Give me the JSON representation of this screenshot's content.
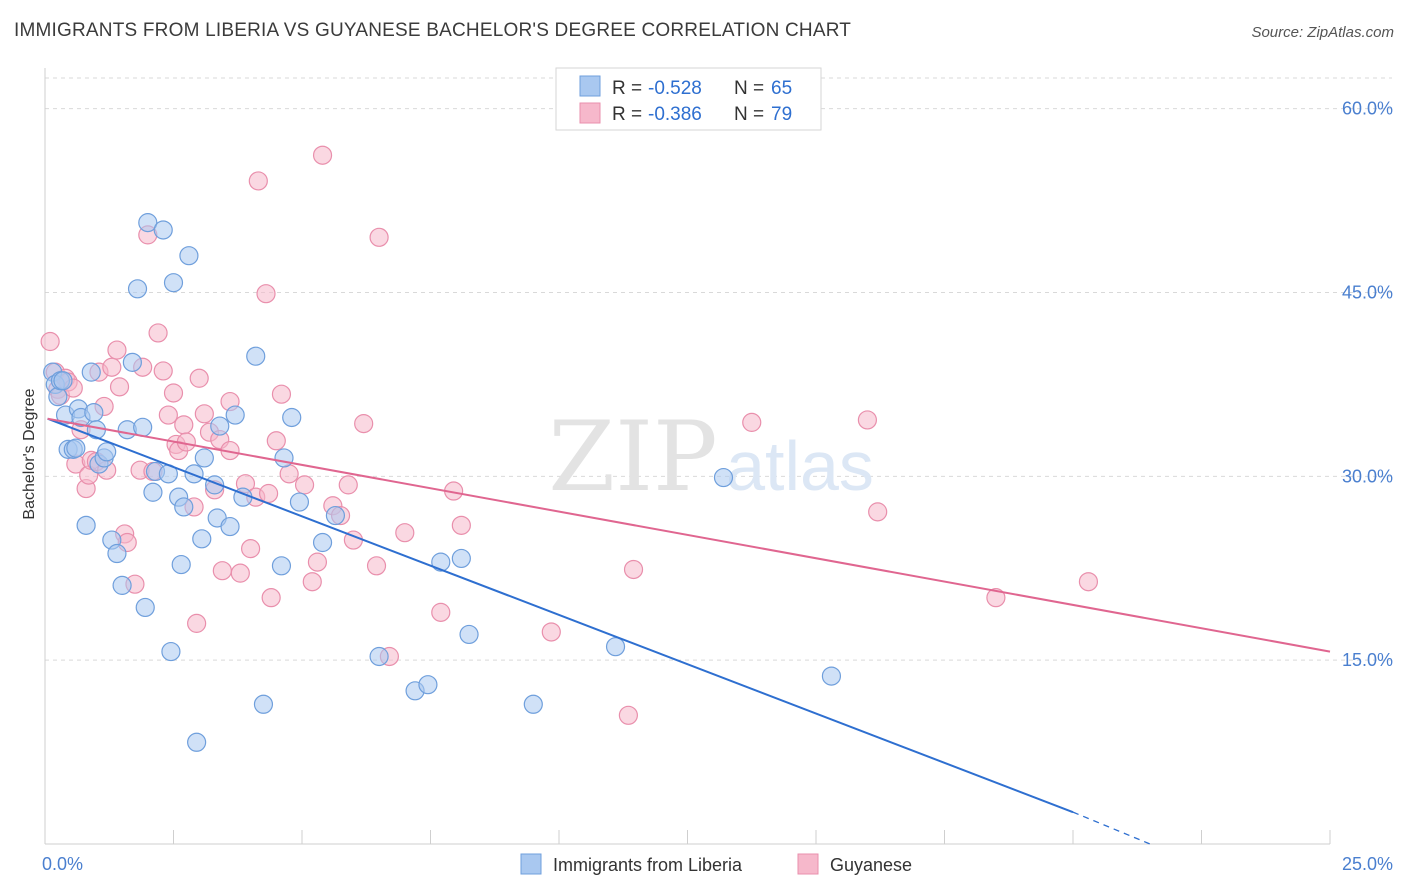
{
  "header": {
    "title": "IMMIGRANTS FROM LIBERIA VS GUYANESE BACHELOR'S DEGREE CORRELATION CHART",
    "source": "Source: ZipAtlas.com"
  },
  "watermark": {
    "zip": "ZIP",
    "atlas": "atlas"
  },
  "stats": [
    {
      "r_label": "R = ",
      "r_value": "-0.528",
      "n_label": "N = ",
      "n_value": "65"
    },
    {
      "r_label": "R = ",
      "r_value": "-0.386",
      "n_label": "N = ",
      "n_value": "79"
    }
  ],
  "colors": {
    "liberia_fill": "#a9c8f0",
    "liberia_stroke": "#6f9fdc",
    "liberia_line": "#2e6fd0",
    "guyanese_fill": "#f6b8cb",
    "guyanese_stroke": "#e98fac",
    "guyanese_line": "#e06690",
    "tick_text": "#4a7fcf",
    "grid": "#d9d9d9"
  },
  "chart_data": {
    "type": "scatter",
    "title": "IMMIGRANTS FROM LIBERIA VS GUYANESE BACHELOR'S DEGREE CORRELATION CHART",
    "xlabel": "",
    "ylabel": "Bachelor's Degree",
    "xlim": [
      0,
      25
    ],
    "ylim": [
      0,
      62.5
    ],
    "x_tick_labels": [
      {
        "value": 0,
        "label": "0.0%"
      },
      {
        "value": 25,
        "label": "25.0%"
      }
    ],
    "y_tick_labels": [
      {
        "value": 15,
        "label": "15.0%"
      },
      {
        "value": 30,
        "label": "30.0%"
      },
      {
        "value": 45,
        "label": "45.0%"
      },
      {
        "value": 60,
        "label": "60.0%"
      }
    ],
    "x_ticks": [
      0,
      2.5,
      5,
      7.5,
      10,
      12.5,
      15,
      17.5,
      20,
      22.5,
      25
    ],
    "grid": true,
    "legend_position": "bottom",
    "series": [
      {
        "name": "Immigrants from Liberia",
        "color": "#a9c8f0",
        "points": [
          [
            0.15,
            38.5
          ],
          [
            0.2,
            37.5
          ],
          [
            0.25,
            36.5
          ],
          [
            0.3,
            37.8
          ],
          [
            0.35,
            37.8
          ],
          [
            0.4,
            35.0
          ],
          [
            0.45,
            32.2
          ],
          [
            0.55,
            32.2
          ],
          [
            0.6,
            32.3
          ],
          [
            0.65,
            35.5
          ],
          [
            0.7,
            34.8
          ],
          [
            0.8,
            26.0
          ],
          [
            0.9,
            38.5
          ],
          [
            0.95,
            35.2
          ],
          [
            1.0,
            33.8
          ],
          [
            1.05,
            31.0
          ],
          [
            1.15,
            31.5
          ],
          [
            1.2,
            32.0
          ],
          [
            1.3,
            24.8
          ],
          [
            1.4,
            23.7
          ],
          [
            1.5,
            21.1
          ],
          [
            1.6,
            33.8
          ],
          [
            1.7,
            39.3
          ],
          [
            1.8,
            45.3
          ],
          [
            1.9,
            34.0
          ],
          [
            1.95,
            19.3
          ],
          [
            2.0,
            50.7
          ],
          [
            2.1,
            28.7
          ],
          [
            2.15,
            30.4
          ],
          [
            2.3,
            50.1
          ],
          [
            2.4,
            30.2
          ],
          [
            2.45,
            15.7
          ],
          [
            2.5,
            45.8
          ],
          [
            2.6,
            28.3
          ],
          [
            2.65,
            22.8
          ],
          [
            2.7,
            27.5
          ],
          [
            2.8,
            48.0
          ],
          [
            2.9,
            30.2
          ],
          [
            2.95,
            8.3
          ],
          [
            3.05,
            24.9
          ],
          [
            3.1,
            31.5
          ],
          [
            3.3,
            29.3
          ],
          [
            3.35,
            26.6
          ],
          [
            3.4,
            34.1
          ],
          [
            3.6,
            25.9
          ],
          [
            3.7,
            35.0
          ],
          [
            3.85,
            28.3
          ],
          [
            4.1,
            39.8
          ],
          [
            4.25,
            11.4
          ],
          [
            4.6,
            22.7
          ],
          [
            4.65,
            31.5
          ],
          [
            4.8,
            34.8
          ],
          [
            4.95,
            27.9
          ],
          [
            5.4,
            24.6
          ],
          [
            5.65,
            26.8
          ],
          [
            6.5,
            15.3
          ],
          [
            7.2,
            12.5
          ],
          [
            7.45,
            13.0
          ],
          [
            7.7,
            23.0
          ],
          [
            8.1,
            23.3
          ],
          [
            8.25,
            17.1
          ],
          [
            9.5,
            11.4
          ],
          [
            11.1,
            16.1
          ],
          [
            13.2,
            29.9
          ],
          [
            15.3,
            13.7
          ]
        ]
      },
      {
        "name": "Guyanese",
        "color": "#f6b8cb",
        "points": [
          [
            0.1,
            41.0
          ],
          [
            0.2,
            38.5
          ],
          [
            0.25,
            37.1
          ],
          [
            0.3,
            36.6
          ],
          [
            0.4,
            38.0
          ],
          [
            0.45,
            37.7
          ],
          [
            0.55,
            37.2
          ],
          [
            0.6,
            31.0
          ],
          [
            0.7,
            33.8
          ],
          [
            0.8,
            29.0
          ],
          [
            0.85,
            30.1
          ],
          [
            0.9,
            31.3
          ],
          [
            1.0,
            31.2
          ],
          [
            1.05,
            38.5
          ],
          [
            1.15,
            35.7
          ],
          [
            1.2,
            30.5
          ],
          [
            1.3,
            38.9
          ],
          [
            1.4,
            40.3
          ],
          [
            1.45,
            37.3
          ],
          [
            1.55,
            25.3
          ],
          [
            1.6,
            24.6
          ],
          [
            1.75,
            21.2
          ],
          [
            1.85,
            30.5
          ],
          [
            1.9,
            38.9
          ],
          [
            2.0,
            49.7
          ],
          [
            2.1,
            30.4
          ],
          [
            2.2,
            41.7
          ],
          [
            2.3,
            38.6
          ],
          [
            2.4,
            35.0
          ],
          [
            2.5,
            36.8
          ],
          [
            2.55,
            32.6
          ],
          [
            2.6,
            32.1
          ],
          [
            2.7,
            34.2
          ],
          [
            2.75,
            32.8
          ],
          [
            2.9,
            27.5
          ],
          [
            2.95,
            18.0
          ],
          [
            3.0,
            38.0
          ],
          [
            3.1,
            35.1
          ],
          [
            3.2,
            33.6
          ],
          [
            3.3,
            28.9
          ],
          [
            3.4,
            33.0
          ],
          [
            3.45,
            22.3
          ],
          [
            3.6,
            32.1
          ],
          [
            3.6,
            36.1
          ],
          [
            3.8,
            22.1
          ],
          [
            3.9,
            29.4
          ],
          [
            4.0,
            24.1
          ],
          [
            4.1,
            28.3
          ],
          [
            4.15,
            54.1
          ],
          [
            4.3,
            44.9
          ],
          [
            4.35,
            28.6
          ],
          [
            4.4,
            20.1
          ],
          [
            4.5,
            32.9
          ],
          [
            4.6,
            36.7
          ],
          [
            4.75,
            30.2
          ],
          [
            5.05,
            29.3
          ],
          [
            5.2,
            21.4
          ],
          [
            5.3,
            23.0
          ],
          [
            5.4,
            56.2
          ],
          [
            5.6,
            27.6
          ],
          [
            5.75,
            26.8
          ],
          [
            5.9,
            29.3
          ],
          [
            6.0,
            24.8
          ],
          [
            6.2,
            34.3
          ],
          [
            6.5,
            49.5
          ],
          [
            6.7,
            15.3
          ],
          [
            6.45,
            22.7
          ],
          [
            7.0,
            25.4
          ],
          [
            7.7,
            18.9
          ],
          [
            7.95,
            28.8
          ],
          [
            8.1,
            26.0
          ],
          [
            9.85,
            17.3
          ],
          [
            11.45,
            22.4
          ],
          [
            11.35,
            10.5
          ],
          [
            13.75,
            34.4
          ],
          [
            16.0,
            34.6
          ],
          [
            16.2,
            27.1
          ],
          [
            18.5,
            20.1
          ],
          [
            20.3,
            21.4
          ]
        ]
      }
    ],
    "trend_lines": [
      {
        "series": "Immigrants from Liberia",
        "x1": 0.05,
        "y1": 34.7,
        "x2": 20.0,
        "y2": 2.6,
        "dash_x2": 21.5,
        "dash_y2": 0.0
      },
      {
        "series": "Guyanese",
        "x1": 0.05,
        "y1": 34.7,
        "x2": 25.0,
        "y2": 15.7
      }
    ]
  }
}
